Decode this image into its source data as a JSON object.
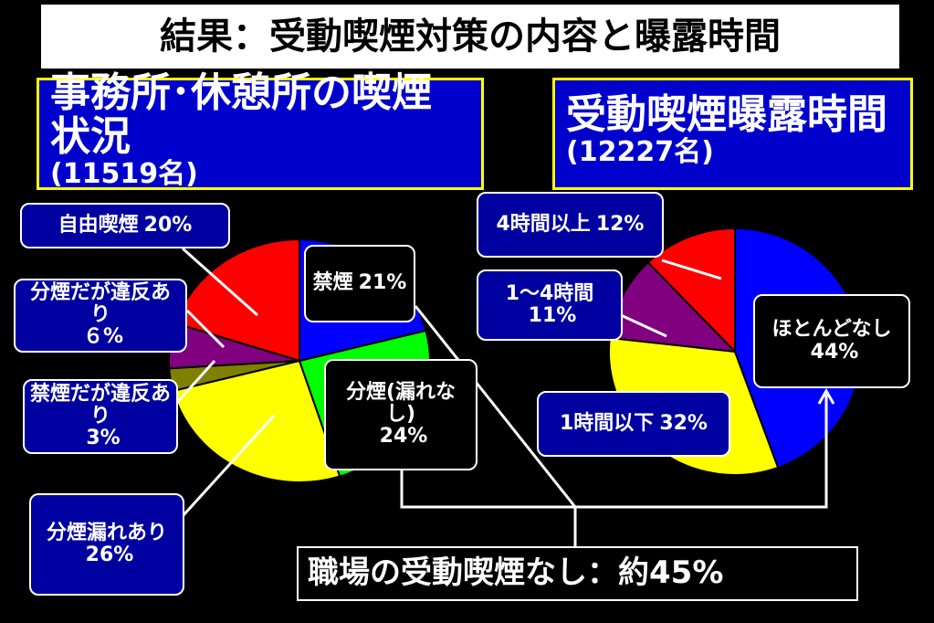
{
  "title": "結果：受動喫煙対策の内容と曝露時間",
  "chart_data": [
    {
      "type": "pie",
      "title": "事務所･休憩所の喫煙状況",
      "subtitle": "(11519名)",
      "categories": [
        "禁煙",
        "分煙(漏れなし)",
        "分煙漏れあり",
        "禁煙だが違反あり",
        "分煙だが違反あり",
        "自由喫煙"
      ],
      "values": [
        21,
        24,
        26,
        3,
        6,
        20
      ],
      "value_labels": [
        "21%",
        "24%",
        "26%",
        "3%",
        "６%",
        "20%"
      ],
      "colors": [
        "#0000ff",
        "#00ff00",
        "#ffff00",
        "#808000",
        "#800080",
        "#ff0000"
      ]
    },
    {
      "type": "pie",
      "title": "受動喫煙曝露時間",
      "subtitle": "(12227名)",
      "categories": [
        "ほとんどなし",
        "1時間以下",
        "1～4時間",
        "4時間以上"
      ],
      "values": [
        44,
        32,
        11,
        12
      ],
      "value_labels": [
        "44%",
        "32%",
        "11%",
        "12%"
      ],
      "colors": [
        "#0000ff",
        "#ffff00",
        "#800080",
        "#ff0000"
      ]
    }
  ],
  "note": "職場の受動喫煙なし：約45%"
}
